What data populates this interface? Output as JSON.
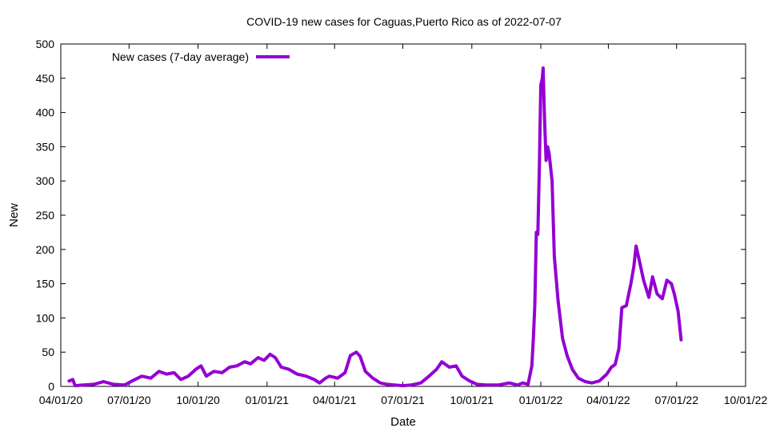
{
  "chart_data": {
    "type": "line",
    "title": "COVID-19 new cases for Caguas,Puerto Rico as of 2022-07-07",
    "xlabel": "Date",
    "ylabel": "New",
    "ylim": [
      0,
      500
    ],
    "yticks": [
      0,
      50,
      100,
      150,
      200,
      250,
      300,
      350,
      400,
      450,
      500
    ],
    "xlim": [
      "2020-04-01",
      "2022-10-01"
    ],
    "xticks": [
      {
        "date": "2020-04-01",
        "label": "04/01/20"
      },
      {
        "date": "2020-07-01",
        "label": "07/01/20"
      },
      {
        "date": "2020-10-01",
        "label": "10/01/20"
      },
      {
        "date": "2021-01-01",
        "label": "01/01/21"
      },
      {
        "date": "2021-04-01",
        "label": "04/01/21"
      },
      {
        "date": "2021-07-01",
        "label": "07/01/21"
      },
      {
        "date": "2021-10-01",
        "label": "10/01/21"
      },
      {
        "date": "2022-01-01",
        "label": "01/01/22"
      },
      {
        "date": "2022-04-01",
        "label": "04/01/22"
      },
      {
        "date": "2022-07-01",
        "label": "07/01/22"
      },
      {
        "date": "2022-10-01",
        "label": "10/01/22"
      }
    ],
    "grid": false,
    "legend_position": "top-left",
    "series": [
      {
        "name": "New cases (7-day average)",
        "color": "#9400d3",
        "points": [
          [
            "2020-04-12",
            8
          ],
          [
            "2020-04-17",
            10
          ],
          [
            "2020-04-20",
            1
          ],
          [
            "2020-05-01",
            2
          ],
          [
            "2020-05-15",
            3
          ],
          [
            "2020-05-28",
            7
          ],
          [
            "2020-06-10",
            3
          ],
          [
            "2020-06-25",
            2
          ],
          [
            "2020-07-05",
            8
          ],
          [
            "2020-07-18",
            15
          ],
          [
            "2020-07-30",
            12
          ],
          [
            "2020-08-10",
            22
          ],
          [
            "2020-08-20",
            18
          ],
          [
            "2020-08-30",
            20
          ],
          [
            "2020-09-08",
            10
          ],
          [
            "2020-09-18",
            15
          ],
          [
            "2020-09-28",
            25
          ],
          [
            "2020-10-05",
            30
          ],
          [
            "2020-10-12",
            15
          ],
          [
            "2020-10-22",
            22
          ],
          [
            "2020-11-02",
            20
          ],
          [
            "2020-11-12",
            28
          ],
          [
            "2020-11-22",
            30
          ],
          [
            "2020-12-02",
            36
          ],
          [
            "2020-12-10",
            33
          ],
          [
            "2020-12-20",
            42
          ],
          [
            "2020-12-28",
            38
          ],
          [
            "2021-01-05",
            47
          ],
          [
            "2021-01-12",
            42
          ],
          [
            "2021-01-20",
            28
          ],
          [
            "2021-01-30",
            25
          ],
          [
            "2021-02-10",
            18
          ],
          [
            "2021-02-22",
            15
          ],
          [
            "2021-03-05",
            10
          ],
          [
            "2021-03-12",
            5
          ],
          [
            "2021-03-20",
            12
          ],
          [
            "2021-03-25",
            15
          ],
          [
            "2021-04-05",
            12
          ],
          [
            "2021-04-15",
            20
          ],
          [
            "2021-04-22",
            45
          ],
          [
            "2021-04-30",
            50
          ],
          [
            "2021-05-05",
            44
          ],
          [
            "2021-05-12",
            22
          ],
          [
            "2021-05-22",
            12
          ],
          [
            "2021-06-01",
            5
          ],
          [
            "2021-06-10",
            3
          ],
          [
            "2021-06-20",
            2
          ],
          [
            "2021-07-01",
            1
          ],
          [
            "2021-07-12",
            2
          ],
          [
            "2021-07-25",
            5
          ],
          [
            "2021-08-05",
            15
          ],
          [
            "2021-08-15",
            25
          ],
          [
            "2021-08-22",
            36
          ],
          [
            "2021-09-01",
            28
          ],
          [
            "2021-09-10",
            30
          ],
          [
            "2021-09-18",
            15
          ],
          [
            "2021-09-28",
            8
          ],
          [
            "2021-10-08",
            3
          ],
          [
            "2021-10-20",
            2
          ],
          [
            "2021-11-05",
            2
          ],
          [
            "2021-11-20",
            5
          ],
          [
            "2021-12-01",
            2
          ],
          [
            "2021-12-08",
            5
          ],
          [
            "2021-12-15",
            3
          ],
          [
            "2021-12-20",
            30
          ],
          [
            "2021-12-22",
            70
          ],
          [
            "2021-12-24",
            118
          ],
          [
            "2021-12-26",
            225
          ],
          [
            "2021-12-28",
            222
          ],
          [
            "2021-12-30",
            320
          ],
          [
            "2022-01-01",
            440
          ],
          [
            "2022-01-03",
            450
          ],
          [
            "2022-01-04",
            465
          ],
          [
            "2022-01-06",
            390
          ],
          [
            "2022-01-08",
            330
          ],
          [
            "2022-01-10",
            350
          ],
          [
            "2022-01-12",
            340
          ],
          [
            "2022-01-16",
            300
          ],
          [
            "2022-01-19",
            190
          ],
          [
            "2022-01-24",
            125
          ],
          [
            "2022-01-30",
            70
          ],
          [
            "2022-02-05",
            45
          ],
          [
            "2022-02-12",
            25
          ],
          [
            "2022-02-20",
            12
          ],
          [
            "2022-03-01",
            7
          ],
          [
            "2022-03-10",
            5
          ],
          [
            "2022-03-20",
            8
          ],
          [
            "2022-03-30",
            18
          ],
          [
            "2022-04-05",
            28
          ],
          [
            "2022-04-10",
            32
          ],
          [
            "2022-04-15",
            55
          ],
          [
            "2022-04-19",
            115
          ],
          [
            "2022-04-25",
            118
          ],
          [
            "2022-05-01",
            150
          ],
          [
            "2022-05-05",
            175
          ],
          [
            "2022-05-08",
            205
          ],
          [
            "2022-05-12",
            185
          ],
          [
            "2022-05-18",
            155
          ],
          [
            "2022-05-25",
            130
          ],
          [
            "2022-05-30",
            160
          ],
          [
            "2022-06-05",
            135
          ],
          [
            "2022-06-12",
            128
          ],
          [
            "2022-06-18",
            155
          ],
          [
            "2022-06-24",
            150
          ],
          [
            "2022-06-28",
            135
          ],
          [
            "2022-07-03",
            110
          ],
          [
            "2022-07-07",
            68
          ]
        ]
      }
    ]
  }
}
